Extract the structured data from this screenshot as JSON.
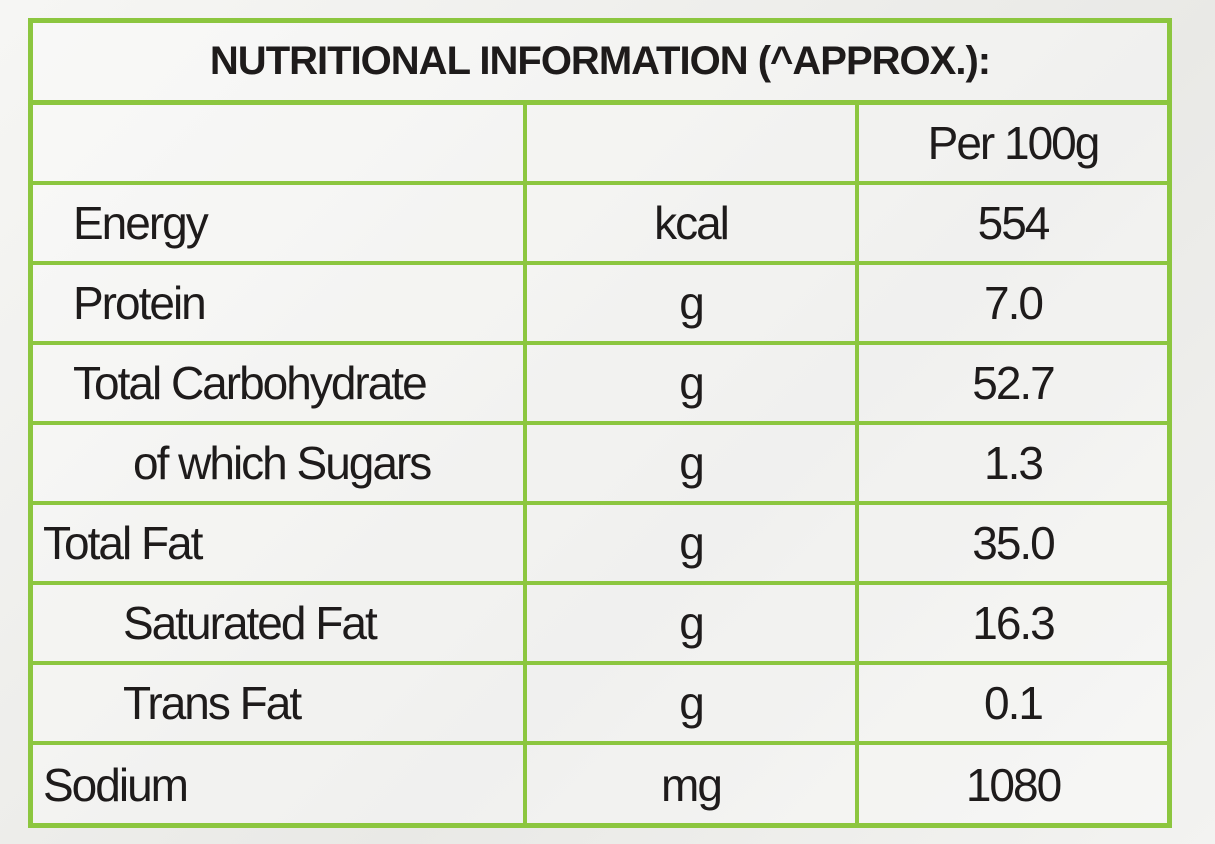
{
  "header": {
    "title": "NUTRITIONAL INFORMATION (^APPROX.):"
  },
  "table": {
    "column_header": "Per 100g",
    "rows": [
      [
        "Energy",
        "kcal",
        "554"
      ],
      [
        "Protein",
        "g",
        "7.0"
      ],
      [
        "Total Carbohydrate",
        "g",
        "52.7"
      ],
      [
        "of which Sugars",
        "g",
        "1.3"
      ],
      [
        "Total Fat",
        "g",
        "35.0"
      ],
      [
        "Saturated Fat",
        "g",
        "16.3"
      ],
      [
        "Trans Fat",
        "g",
        "0.1"
      ],
      [
        "Sodium",
        "mg",
        "1080"
      ]
    ]
  }
}
